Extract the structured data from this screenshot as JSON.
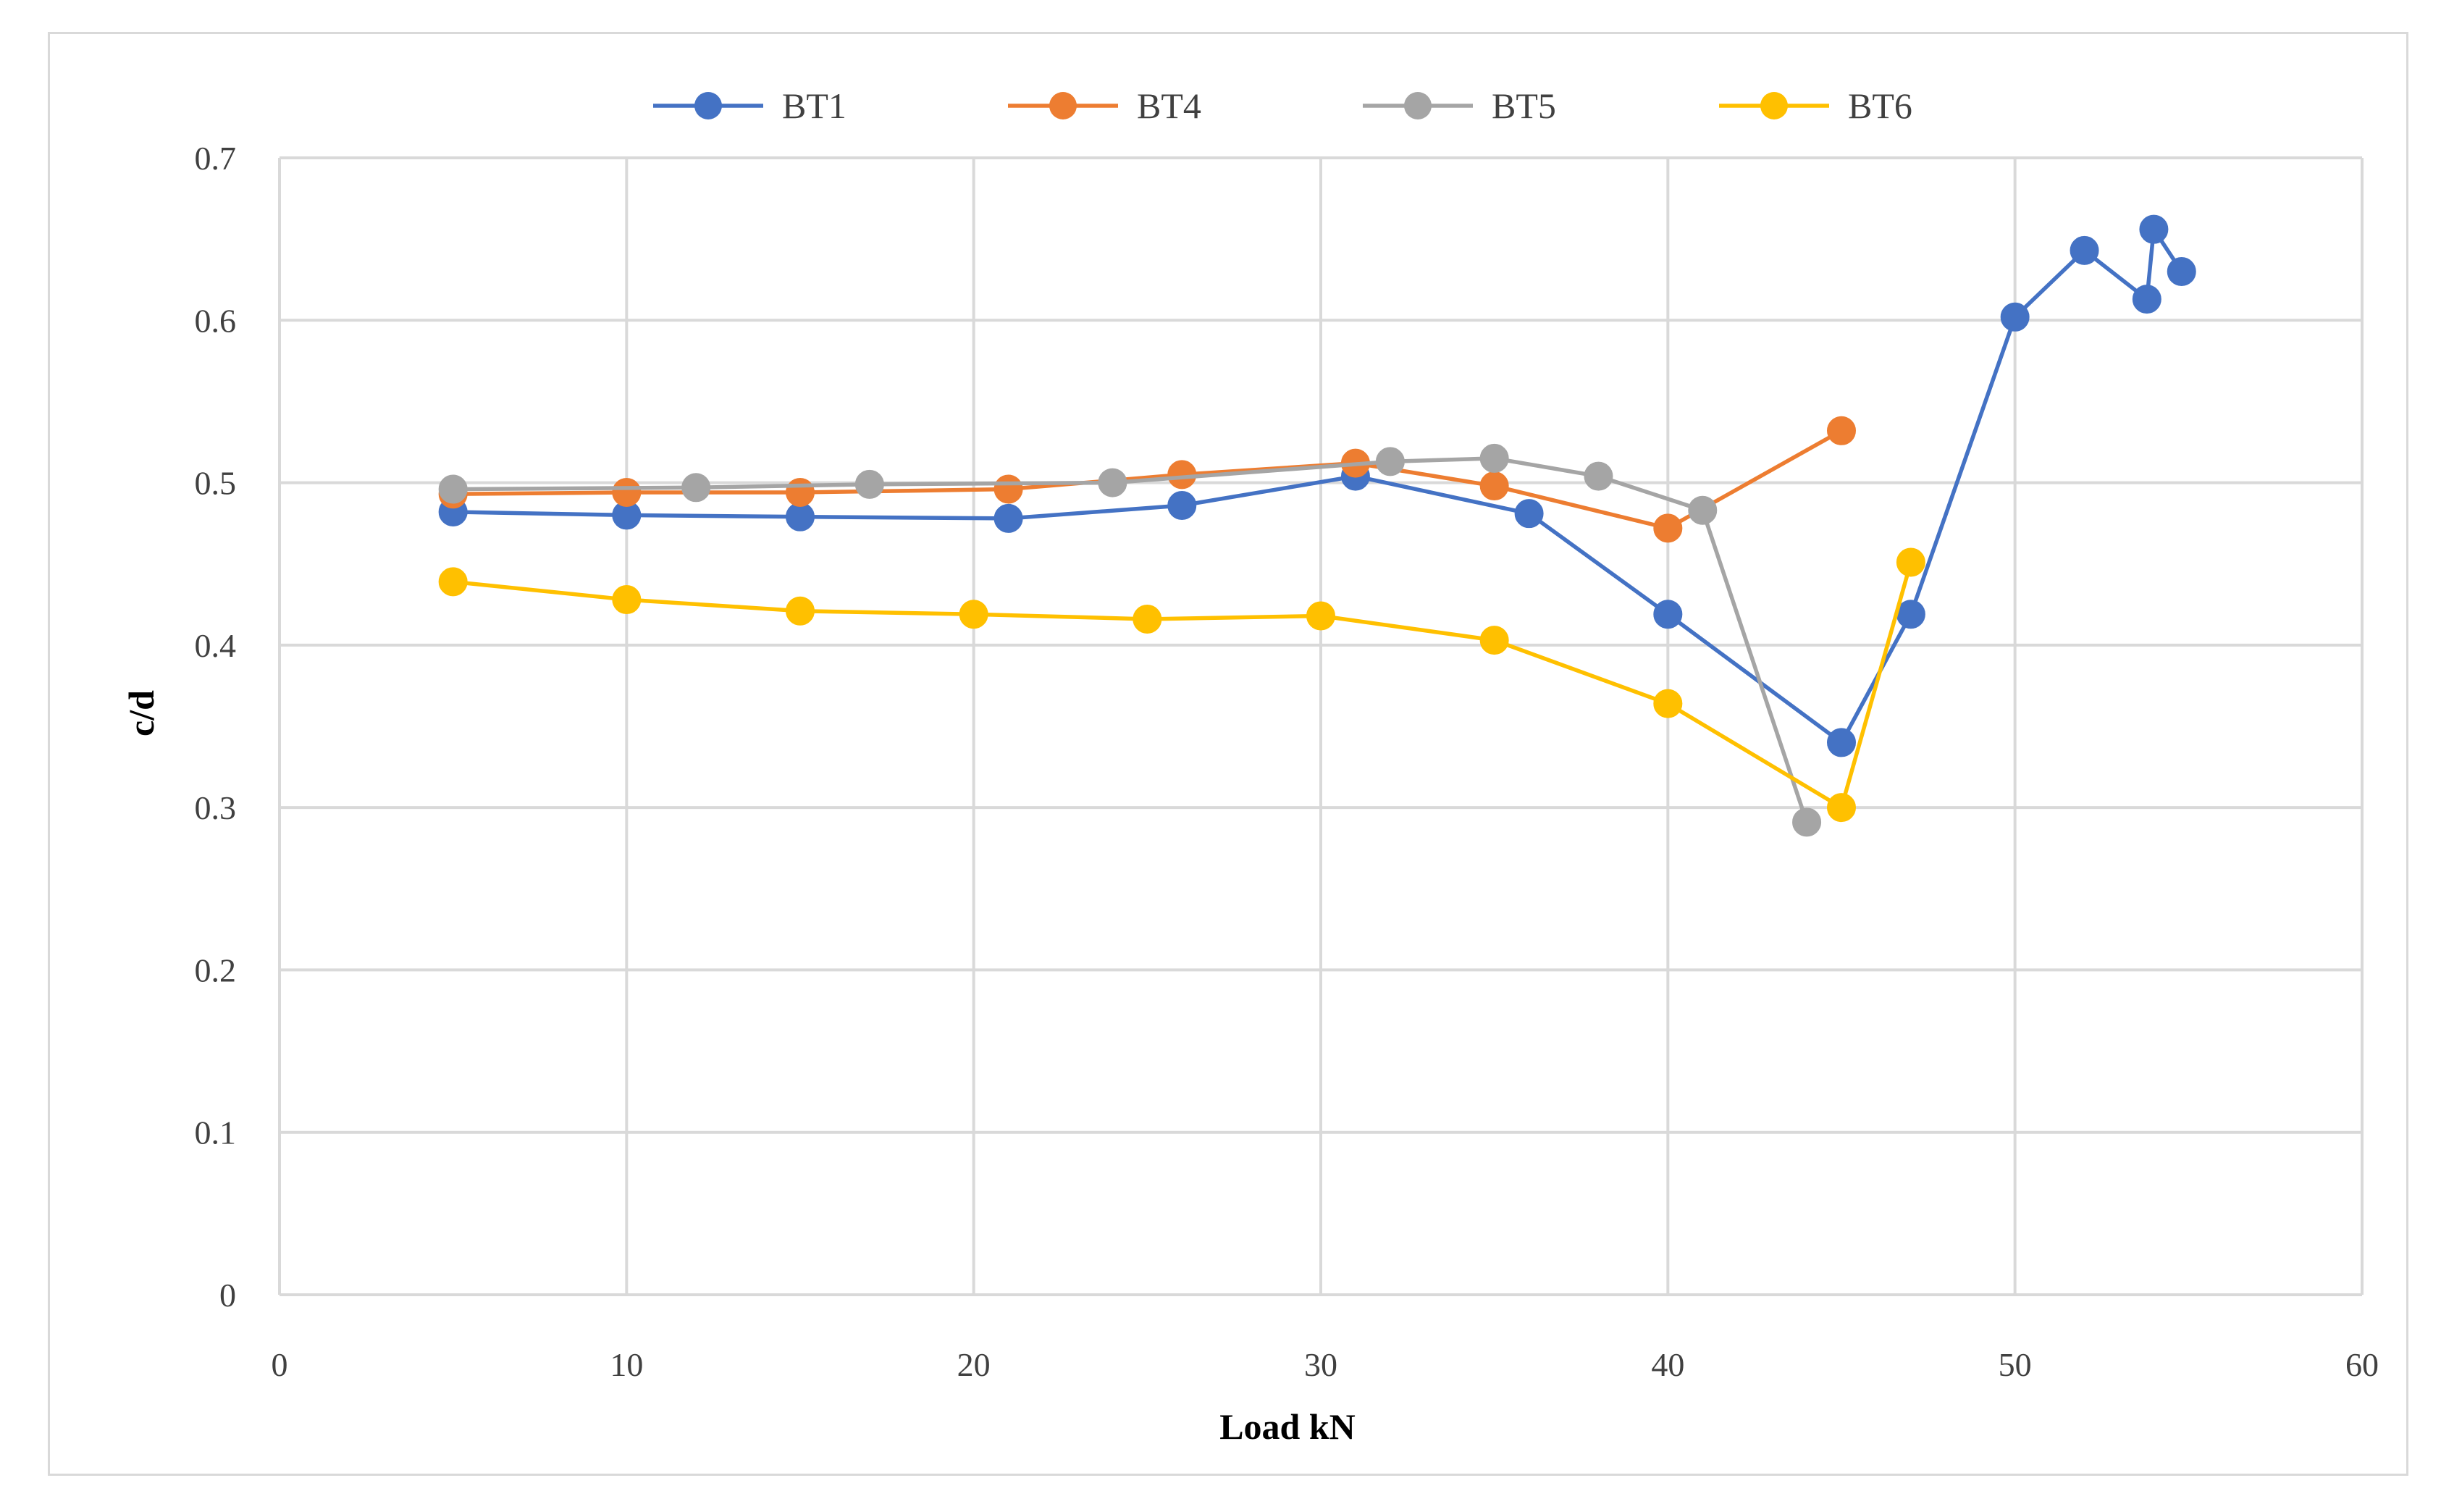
{
  "chart_data": {
    "type": "line",
    "title": "",
    "xlabel": "Load kN",
    "ylabel": "c/d",
    "xlim": [
      0,
      60
    ],
    "ylim": [
      0,
      0.7
    ],
    "xticks": [
      0,
      10,
      20,
      30,
      40,
      50,
      60
    ],
    "xtick_labels": [
      "0",
      "10",
      "20",
      "30",
      "40",
      "50",
      "60"
    ],
    "yticks": [
      0,
      0.1,
      0.2,
      0.3,
      0.4,
      0.5,
      0.6,
      0.7
    ],
    "ytick_labels": [
      "0",
      "0.1",
      "0.2",
      "0.3",
      "0.4",
      "0.5",
      "0.6",
      "0.7"
    ],
    "grid": true,
    "legend_position": "top-center",
    "series": [
      {
        "name": "BT1",
        "color": "#4472c4",
        "x": [
          5,
          10,
          15,
          21,
          26,
          31,
          36,
          40,
          45,
          47,
          50,
          52,
          53.8,
          54,
          54.8
        ],
        "y": [
          0.482,
          0.48,
          0.479,
          0.478,
          0.486,
          0.504,
          0.481,
          0.419,
          0.34,
          0.419,
          0.602,
          0.643,
          0.613,
          0.656,
          0.63
        ]
      },
      {
        "name": "BT4",
        "color": "#ed7d31",
        "x": [
          5,
          10,
          15,
          21,
          26,
          31,
          35,
          40,
          45
        ],
        "y": [
          0.493,
          0.494,
          0.494,
          0.496,
          0.505,
          0.512,
          0.498,
          0.472,
          0.532
        ]
      },
      {
        "name": "BT5",
        "color": "#a5a5a5",
        "x": [
          5,
          12,
          17,
          24,
          32,
          35,
          38,
          41,
          44
        ],
        "y": [
          0.496,
          0.497,
          0.499,
          0.5,
          0.513,
          0.515,
          0.504,
          0.483,
          0.291
        ]
      },
      {
        "name": "BT6",
        "color": "#ffc000",
        "x": [
          5,
          10,
          15,
          20,
          25,
          30,
          35,
          40,
          45,
          47
        ],
        "y": [
          0.439,
          0.428,
          0.421,
          0.419,
          0.416,
          0.418,
          0.403,
          0.364,
          0.3,
          0.451
        ]
      }
    ]
  },
  "colors": {
    "gridline": "#d9d9d9",
    "frame": "#d9d9d9",
    "tick_text": "#404040"
  }
}
